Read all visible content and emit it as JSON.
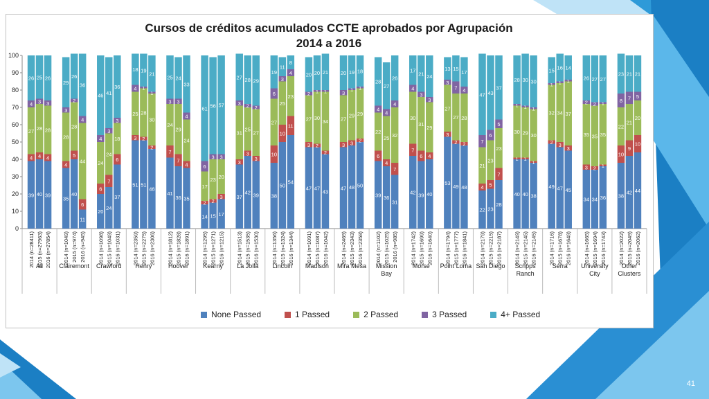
{
  "slide": {
    "number": "41"
  },
  "chart_data": {
    "type": "bar",
    "stacked": true,
    "title": "Cursos de créditos acumulados CCTE aprobados por Agrupación",
    "subtitle": "2014 a 2016",
    "ylim": [
      0,
      100
    ],
    "yticks": [
      0,
      10,
      20,
      30,
      40,
      50,
      60,
      70,
      80,
      90,
      100
    ],
    "grid": false,
    "legend_position": "bottom",
    "series_names": [
      "None Passed",
      "1 Passed",
      "2 Passed",
      "3 Passed",
      "4+ Passed"
    ],
    "colors": [
      "#4f81bd",
      "#c0504d",
      "#9bbb59",
      "#8064a2",
      "#4bacc6"
    ],
    "groups": [
      {
        "name": "All",
        "bars": [
          {
            "label": "2014 (n=28411)",
            "values": [
              39,
              4,
              27,
              4,
              26
            ]
          },
          {
            "label": "2015 (n=27963)",
            "values": [
              40,
              4,
              28,
              3,
              25
            ]
          },
          {
            "label": "2016 (n=27854)",
            "values": [
              39,
              4,
              28,
              3,
              26
            ]
          }
        ]
      },
      {
        "name": "Clairemont",
        "bars": [
          {
            "label": "2014 (n=1049)",
            "values": [
              35,
              4,
              28,
              3,
              29
            ]
          },
          {
            "label": "2015 (n=974)",
            "values": [
              40,
              5,
              28,
              2,
              26
            ]
          },
          {
            "label": "2016 (n=945)",
            "values": [
              11,
              6,
              44,
              4,
              36
            ]
          }
        ]
      },
      {
        "name": "Crawford",
        "bars": [
          {
            "label": "2014 (n=1098)",
            "values": [
              20,
              6,
              24,
              4,
              46
            ]
          },
          {
            "label": "2015 (n=1049)",
            "values": [
              24,
              7,
              24,
              3,
              41
            ]
          },
          {
            "label": "2016 (n=1031)",
            "values": [
              37,
              6,
              18,
              3,
              36
            ]
          }
        ]
      },
      {
        "name": "Henry",
        "bars": [
          {
            "label": "2014 (n=2359)",
            "values": [
              51,
              3,
              25,
              4,
              18
            ]
          },
          {
            "label": "2015 (n=2275)",
            "values": [
              51,
              2,
              28,
              1,
              19
            ]
          },
          {
            "label": "2016 (n=2306)",
            "values": [
              46,
              2,
              30,
              1,
              21
            ]
          }
        ]
      },
      {
        "name": "Hoover",
        "bars": [
          {
            "label": "2014 (n=1812)",
            "values": [
              41,
              7,
              24,
              3,
              25
            ]
          },
          {
            "label": "2015 (n=1828)",
            "values": [
              36,
              7,
              29,
              3,
              24
            ]
          },
          {
            "label": "2016 (n=1891)",
            "values": [
              35,
              4,
              24,
              4,
              33
            ]
          }
        ]
      },
      {
        "name": "Kearny",
        "bars": [
          {
            "label": "2014 (n=1295)",
            "values": [
              14,
              2,
              17,
              6,
              61
            ]
          },
          {
            "label": "2015 (n=1271)",
            "values": [
              15,
              2,
              23,
              3,
              56
            ]
          },
          {
            "label": "2016 (n=1215)",
            "values": [
              17,
              3,
              20,
              3,
              57
            ]
          }
        ]
      },
      {
        "name": "La Jolla",
        "bars": [
          {
            "label": "2014 (n=1513)",
            "values": [
              37,
              3,
              31,
              3,
              27
            ]
          },
          {
            "label": "2015 (n=1535)",
            "values": [
              42,
              3,
              25,
              2,
              28
            ]
          },
          {
            "label": "2016 (n=1530)",
            "values": [
              39,
              3,
              27,
              2,
              29
            ]
          }
        ]
      },
      {
        "name": "Lincoln",
        "bars": [
          {
            "label": "2014 (n=1356)",
            "values": [
              38,
              10,
              27,
              6,
              19
            ]
          },
          {
            "label": "2015 (n=1324)",
            "values": [
              50,
              10,
              25,
              3,
              11
            ]
          },
          {
            "label": "2016 (n=1344)",
            "values": [
              54,
              11,
              23,
              4,
              8
            ]
          }
        ]
      },
      {
        "name": "Madison",
        "bars": [
          {
            "label": "2014 (n=1091)",
            "values": [
              47,
              3,
              27,
              2,
              20
            ]
          },
          {
            "label": "2015 (n=1087)",
            "values": [
              47,
              2,
              30,
              1,
              20
            ]
          },
          {
            "label": "2016 (n=1042)",
            "values": [
              43,
              2,
              34,
              1,
              21
            ]
          }
        ]
      },
      {
        "name": "Mira Mesa",
        "bars": [
          {
            "label": "2014 (n=2469)",
            "values": [
              47,
              3,
              27,
              3,
              20
            ]
          },
          {
            "label": "2015 (n=2343)",
            "values": [
              48,
              3,
              29,
              1,
              19
            ]
          },
          {
            "label": "2016 (n=2358)",
            "values": [
              50,
              2,
              29,
              1,
              18
            ]
          }
        ]
      },
      {
        "name": "Mission Bay",
        "bars": [
          {
            "label": "2014 (n=1102)",
            "values": [
              39,
              6,
              22,
              4,
              28
            ]
          },
          {
            "label": "2015 (n=1025)",
            "values": [
              36,
              4,
              25,
              4,
              27
            ]
          },
          {
            "label": "2016 (n=985)",
            "values": [
              31,
              7,
              32,
              4,
              26
            ]
          }
        ]
      },
      {
        "name": "Morse",
        "bars": [
          {
            "label": "2014 (n=1742)",
            "values": [
              42,
              7,
              30,
              4,
              17
            ]
          },
          {
            "label": "2015 (n=1699)",
            "values": [
              39,
              6,
              31,
              3,
              21
            ]
          },
          {
            "label": "2016 (n=1640)",
            "values": [
              40,
              4,
              29,
              3,
              24
            ]
          }
        ]
      },
      {
        "name": "Point Loma",
        "bars": [
          {
            "label": "2014 (n=1794)",
            "values": [
              53,
              3,
              27,
              3,
              13
            ]
          },
          {
            "label": "2015 (n=1777)",
            "values": [
              49,
              2,
              27,
              7,
              15
            ]
          },
          {
            "label": "2016 (n=1841)",
            "values": [
              48,
              2,
              28,
              4,
              17
            ]
          }
        ]
      },
      {
        "name": "San Diego",
        "bars": [
          {
            "label": "2014 (n=2179)",
            "values": [
              22,
              4,
              21,
              7,
              47
            ]
          },
          {
            "label": "2015 (n=2215)",
            "values": [
              23,
              5,
              23,
              6,
              43
            ]
          },
          {
            "label": "2016 (n=2187)",
            "values": [
              28,
              7,
              23,
              5,
              37
            ]
          }
        ]
      },
      {
        "name": "Scripps Ranch",
        "bars": [
          {
            "label": "2014 (n=2149)",
            "values": [
              40,
              1,
              30,
              1,
              28
            ]
          },
          {
            "label": "2015 (n=2145)",
            "values": [
              40,
              1,
              29,
              1,
              30
            ]
          },
          {
            "label": "2016 (n=2145)",
            "values": [
              38,
              1,
              30,
              1,
              30
            ]
          }
        ]
      },
      {
        "name": "Serra",
        "bars": [
          {
            "label": "2014 (n=1716)",
            "values": [
              49,
              2,
              32,
              1,
              15
            ]
          },
          {
            "label": "2015 (n=1678)",
            "values": [
              47,
              3,
              34,
              1,
              16
            ]
          },
          {
            "label": "2016 (n=1649)",
            "values": [
              45,
              3,
              37,
              1,
              14
            ]
          }
        ]
      },
      {
        "name": "University City",
        "bars": [
          {
            "label": "2014 (n=1665)",
            "values": [
              34,
              3,
              35,
              2,
              26
            ]
          },
          {
            "label": "2015 (n=1694)",
            "values": [
              34,
              2,
              35,
              2,
              27
            ]
          },
          {
            "label": "2016 (n=1743)",
            "values": [
              36,
              1,
              35,
              1,
              27
            ]
          }
        ]
      },
      {
        "name": "Other Clusters",
        "bars": [
          {
            "label": "2014 (n=2022)",
            "values": [
              38,
              10,
              22,
              8,
              23
            ]
          },
          {
            "label": "2015 (n=2049)",
            "values": [
              42,
              9,
              21,
              7,
              21
            ]
          },
          {
            "label": "2016 (n=2062)",
            "values": [
              44,
              10,
              20,
              5,
              21
            ]
          }
        ]
      }
    ]
  }
}
